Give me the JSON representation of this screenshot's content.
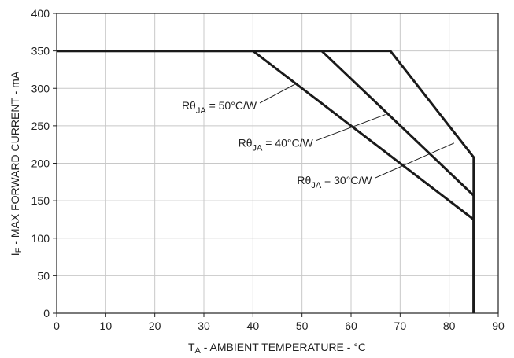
{
  "chart_data": {
    "type": "line",
    "xlabel": {
      "main": "T",
      "sub": "A",
      "rest": " - AMBIENT TEMPERATURE - °C"
    },
    "ylabel": {
      "main": "I",
      "sub": "F",
      "rest": " - MAX FORWARD CURRENT -  mA"
    },
    "xlim": [
      0,
      90
    ],
    "ylim": [
      0,
      400
    ],
    "xticks": [
      0,
      10,
      20,
      30,
      40,
      50,
      60,
      70,
      80,
      90
    ],
    "yticks": [
      0,
      50,
      100,
      150,
      200,
      250,
      300,
      350,
      400
    ],
    "grid": true,
    "series": [
      {
        "name": "RθJA = 50°C/W",
        "label": {
          "main": "Rθ",
          "sub": "JA",
          "rest": " = 50°C/W"
        },
        "x": [
          0,
          40,
          85,
          85
        ],
        "y": [
          350,
          350,
          125,
          0
        ]
      },
      {
        "name": "RθJA = 40°C/W",
        "label": {
          "main": "Rθ",
          "sub": "JA",
          "rest": " = 40°C/W"
        },
        "x": [
          0,
          54,
          85,
          85
        ],
        "y": [
          350,
          350,
          157,
          0
        ]
      },
      {
        "name": "RθJA = 30°C/W",
        "label": {
          "main": "Rθ",
          "sub": "JA",
          "rest": " = 30°C/W"
        },
        "x": [
          0,
          68,
          85,
          85
        ],
        "y": [
          350,
          350,
          208,
          0
        ]
      }
    ],
    "annotations": [
      {
        "series": 0,
        "text_at": [
          25.5,
          272
        ],
        "point_to": [
          49,
          307
        ]
      },
      {
        "series": 1,
        "text_at": [
          37,
          222
        ],
        "point_to": [
          67,
          265
        ]
      },
      {
        "series": 2,
        "text_at": [
          49,
          172
        ],
        "point_to": [
          81,
          227
        ]
      }
    ]
  }
}
